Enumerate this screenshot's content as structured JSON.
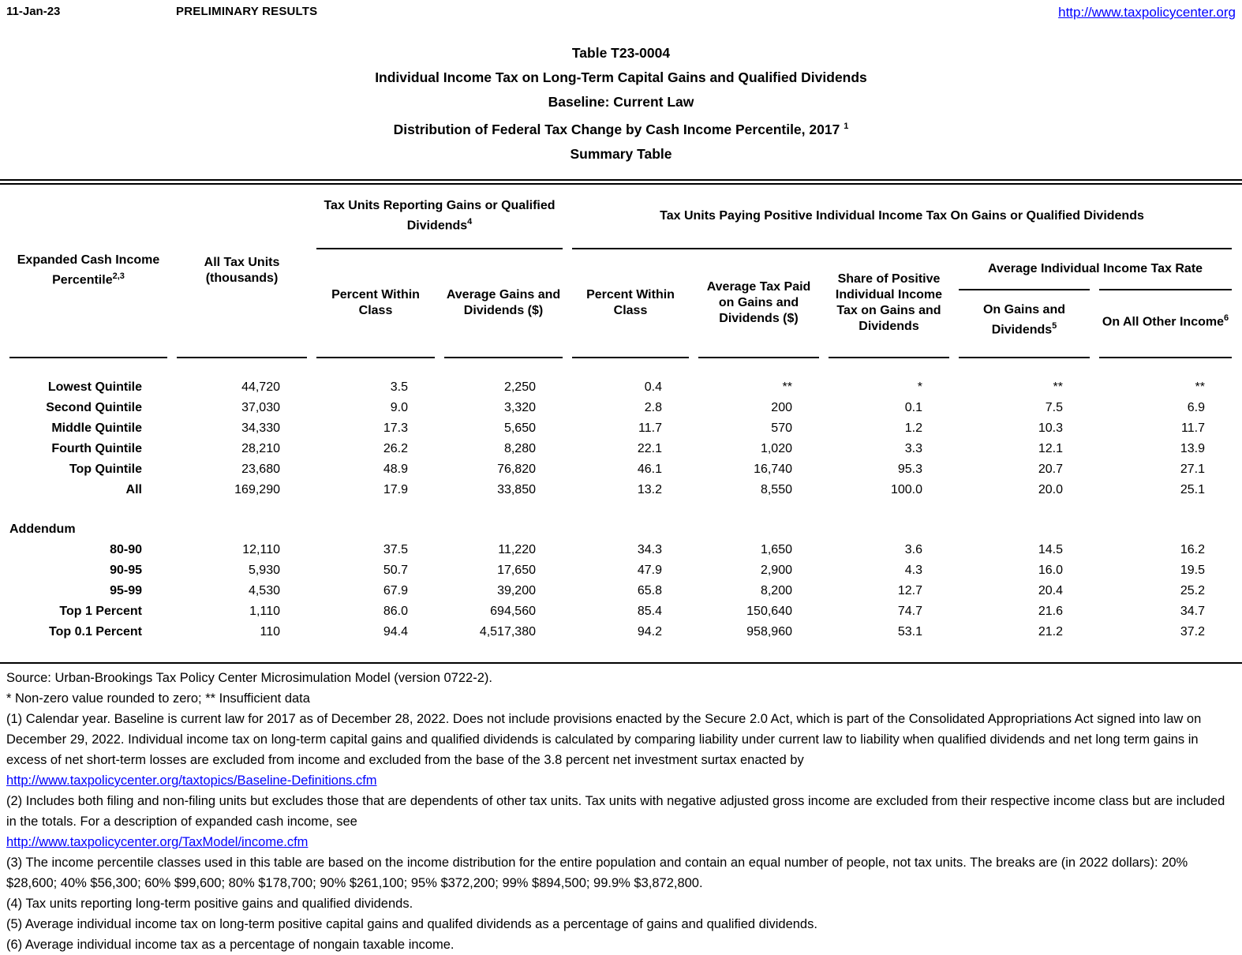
{
  "page": {
    "date": "11-Jan-23",
    "status": "PRELIMINARY RESULTS",
    "site_url": "http://www.taxpolicycenter.org"
  },
  "title": {
    "line1": "Table T23-0004",
    "line2": "Individual Income Tax on Long-Term Capital Gains and Qualified Dividends",
    "line3": "Baseline: Current Law",
    "line4": "Distribution of Federal Tax Change by Cash Income Percentile, 2017",
    "line4_sup": "1",
    "line5": "Summary Table"
  },
  "table": {
    "group_headers": {
      "reporting": "Tax Units Reporting Gains or Qualified Dividends",
      "reporting_sup": "4",
      "paying": "Tax Units Paying Positive Individual Income Tax On Gains or Qualified Dividends",
      "avg_rate": "Average Individual Income Tax Rate"
    },
    "columns": {
      "percentile": {
        "label": "Expanded Cash Income Percentile",
        "sup": "2,3"
      },
      "all_tax_units": {
        "label": "All Tax Units (thousands)"
      },
      "pct_within_class_reporting": {
        "label": "Percent Within Class"
      },
      "avg_gains_dividends": {
        "label": "Average Gains and Dividends ($)"
      },
      "pct_within_class_paying": {
        "label": "Percent Within Class"
      },
      "avg_tax_paid": {
        "label": "Average Tax Paid on Gains and Dividends ($)"
      },
      "share_positive_tax": {
        "label": "Share of Positive Individual Income Tax on Gains and Dividends"
      },
      "rate_on_gains": {
        "label": "On Gains and Dividends",
        "sup": "5"
      },
      "rate_on_other": {
        "label": "On All Other Income",
        "sup": "6"
      }
    },
    "rows": [
      {
        "label": "Lowest Quintile",
        "values": [
          "44,720",
          "3.5",
          "2,250",
          "0.4",
          "**",
          "*",
          "**",
          "**"
        ]
      },
      {
        "label": "Second Quintile",
        "values": [
          "37,030",
          "9.0",
          "3,320",
          "2.8",
          "200",
          "0.1",
          "7.5",
          "6.9"
        ]
      },
      {
        "label": "Middle Quintile",
        "values": [
          "34,330",
          "17.3",
          "5,650",
          "11.7",
          "570",
          "1.2",
          "10.3",
          "11.7"
        ]
      },
      {
        "label": "Fourth Quintile",
        "values": [
          "28,210",
          "26.2",
          "8,280",
          "22.1",
          "1,020",
          "3.3",
          "12.1",
          "13.9"
        ]
      },
      {
        "label": "Top Quintile",
        "values": [
          "23,680",
          "48.9",
          "76,820",
          "46.1",
          "16,740",
          "95.3",
          "20.7",
          "27.1"
        ]
      },
      {
        "label": "All",
        "values": [
          "169,290",
          "17.9",
          "33,850",
          "13.2",
          "8,550",
          "100.0",
          "20.0",
          "25.1"
        ]
      }
    ],
    "addendum_label": "Addendum",
    "addendum_rows": [
      {
        "label": "80-90",
        "values": [
          "12,110",
          "37.5",
          "11,220",
          "34.3",
          "1,650",
          "3.6",
          "14.5",
          "16.2"
        ]
      },
      {
        "label": "90-95",
        "values": [
          "5,930",
          "50.7",
          "17,650",
          "47.9",
          "2,900",
          "4.3",
          "16.0",
          "19.5"
        ]
      },
      {
        "label": "95-99",
        "values": [
          "4,530",
          "67.9",
          "39,200",
          "65.8",
          "8,200",
          "12.7",
          "20.4",
          "25.2"
        ]
      },
      {
        "label": "Top 1 Percent",
        "values": [
          "1,110",
          "86.0",
          "694,560",
          "85.4",
          "150,640",
          "74.7",
          "21.6",
          "34.7"
        ]
      },
      {
        "label": "Top 0.1 Percent",
        "values": [
          "110",
          "94.4",
          "4,517,380",
          "94.2",
          "958,960",
          "53.1",
          "21.2",
          "37.2"
        ]
      }
    ]
  },
  "footnotes": [
    {
      "type": "text",
      "text": "Source: Urban-Brookings Tax Policy Center Microsimulation Model (version 0722-2)."
    },
    {
      "type": "text",
      "text": "* Non-zero value rounded to zero; ** Insufficient data"
    },
    {
      "type": "text",
      "text": "(1) Calendar year. Baseline is current law for 2017 as of December 28, 2022. Does not include provisions enacted by the Secure 2.0 Act, which is part of the Consolidated Appropriations Act signed into law on December 29, 2022. Individual income tax on long-term capital gains and qualified dividends is calculated by comparing liability under current law to liability when qualified dividends and net long term gains in excess of net short-term losses are excluded from income and excluded from the base of the 3.8 percent net investment surtax enacted by"
    },
    {
      "type": "link",
      "text": "http://www.taxpolicycenter.org/taxtopics/Baseline-Definitions.cfm"
    },
    {
      "type": "text",
      "text": "(2) Includes both filing and non-filing units but excludes those that are dependents of other tax units. Tax units with negative adjusted gross income are excluded from their respective income class but are included in the totals. For a description of expanded cash income, see"
    },
    {
      "type": "link",
      "text": "http://www.taxpolicycenter.org/TaxModel/income.cfm"
    },
    {
      "type": "text",
      "text": "(3) The income percentile classes used in this table are based on the income distribution for the entire population and contain an equal number of people, not tax units. The breaks are (in 2022 dollars): 20% $28,600; 40% $56,300; 60% $99,600; 80% $178,700; 90% $261,100; 95% $372,200; 99% $894,500; 99.9% $3,872,800."
    },
    {
      "type": "text",
      "text": "(4) Tax units reporting long-term positive gains and qualified dividends."
    },
    {
      "type": "text",
      "text": "(5) Average individual income tax on long-term positive capital gains and qualifed dividends as a percentage of gains and qualified dividends."
    },
    {
      "type": "text",
      "text": "(6) Average individual income tax as a percentage of nongain taxable income."
    }
  ]
}
